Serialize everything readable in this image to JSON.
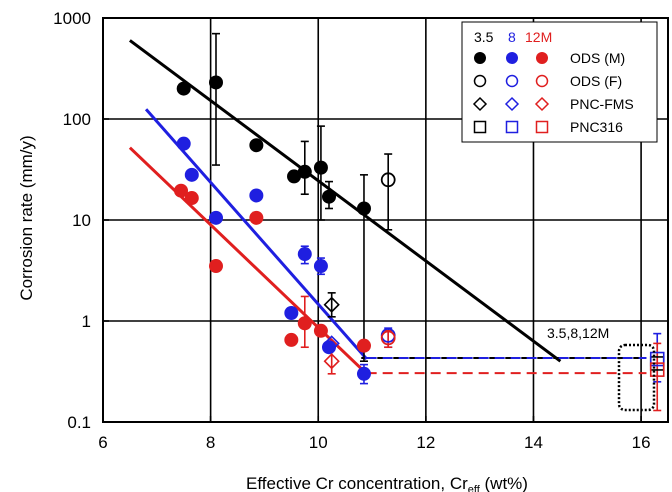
{
  "chart_data": {
    "type": "scatter",
    "title": "",
    "xlabel": "Effective Cr concentration, Cr",
    "xlabel_sub": "eff",
    "xlabel_unit": " (wt%)",
    "ylabel": "Corrosion rate (mm/y)",
    "xlim": [
      6,
      16.5
    ],
    "ylim": [
      0.1,
      1000
    ],
    "yscale": "log",
    "grid": true,
    "x_ticks": [
      6,
      8,
      10,
      12,
      14,
      16
    ],
    "x_tick_labels": [
      "6",
      "8",
      "10",
      "12",
      "14",
      "16"
    ],
    "y_ticks": [
      0.1,
      1,
      10,
      100,
      1000
    ],
    "y_tick_labels": [
      "0.1",
      "1",
      "10",
      "100",
      "1000"
    ],
    "legend": {
      "placement": "top-right",
      "header": [
        {
          "text": "3.5",
          "color": "#000000"
        },
        {
          "text": "8",
          "color": "#1f1fe0"
        },
        {
          "text": "12M",
          "color": "#e01f1f"
        }
      ],
      "rows": [
        {
          "marker": "circle-filled",
          "label": "ODS (M)"
        },
        {
          "marker": "circle-open",
          "label": "ODS (F)"
        },
        {
          "marker": "diamond-open",
          "label": "PNC-FMS"
        },
        {
          "marker": "square-open",
          "label": "PNC316"
        }
      ]
    },
    "annotation": "3.5,8,12M",
    "colors": {
      "3.5M": "#000000",
      "8M": "#1f1fe0",
      "12M": "#e01f1f"
    },
    "series": [
      {
        "name": "3.5",
        "color": "#000000",
        "points": [
          {
            "x": 7.5,
            "y": 200,
            "marker": "circle-filled"
          },
          {
            "x": 8.1,
            "y": 230,
            "marker": "circle-filled",
            "err": [
              35,
              700
            ]
          },
          {
            "x": 8.85,
            "y": 55,
            "marker": "circle-filled"
          },
          {
            "x": 9.55,
            "y": 27,
            "marker": "circle-filled"
          },
          {
            "x": 9.75,
            "y": 30,
            "marker": "circle-filled",
            "err": [
              18,
              60
            ]
          },
          {
            "x": 10.05,
            "y": 33,
            "marker": "circle-filled",
            "err": [
              10,
              85
            ]
          },
          {
            "x": 10.2,
            "y": 17,
            "marker": "circle-filled",
            "err": [
              13,
              24
            ]
          },
          {
            "x": 10.85,
            "y": 13,
            "marker": "circle-filled",
            "err": [
              0.4,
              28
            ]
          },
          {
            "x": 11.3,
            "y": 25,
            "marker": "circle-open",
            "err": [
              8,
              45
            ]
          },
          {
            "x": 10.25,
            "y": 1.45,
            "marker": "diamond-open",
            "err": [
              1.1,
              1.9
            ]
          },
          {
            "x": 16.3,
            "y": 0.38,
            "marker": "square-open"
          }
        ],
        "fit": {
          "x": [
            6.5,
            14.5
          ],
          "y": [
            600,
            0.4
          ]
        },
        "extension": {
          "x": [
            10.8,
            16.1
          ],
          "y": 0.43
        }
      },
      {
        "name": "8",
        "color": "#1f1fe0",
        "points": [
          {
            "x": 7.5,
            "y": 57,
            "marker": "circle-filled"
          },
          {
            "x": 7.65,
            "y": 28,
            "marker": "circle-filled"
          },
          {
            "x": 8.1,
            "y": 10.5,
            "marker": "circle-filled"
          },
          {
            "x": 8.85,
            "y": 17.5,
            "marker": "circle-filled"
          },
          {
            "x": 9.5,
            "y": 1.2,
            "marker": "circle-filled"
          },
          {
            "x": 9.75,
            "y": 4.6,
            "marker": "circle-filled",
            "err": [
              3.7,
              5.5
            ]
          },
          {
            "x": 10.05,
            "y": 3.5,
            "marker": "circle-filled",
            "err": [
              2.9,
              4.2
            ]
          },
          {
            "x": 10.2,
            "y": 0.55,
            "marker": "circle-filled"
          },
          {
            "x": 10.85,
            "y": 0.3,
            "marker": "circle-filled",
            "err": [
              0.24,
              0.37
            ]
          },
          {
            "x": 11.3,
            "y": 0.72,
            "marker": "circle-open",
            "err": [
              0.55,
              0.85
            ]
          },
          {
            "x": 10.25,
            "y": 0.6,
            "marker": "diamond-open"
          },
          {
            "x": 16.3,
            "y": 0.42,
            "marker": "square-open",
            "err": [
              0.25,
              0.75
            ]
          }
        ],
        "fit": {
          "x": [
            6.8,
            10.9
          ],
          "y": [
            125,
            0.42
          ]
        },
        "extension": {
          "x": [
            10.9,
            16.1
          ],
          "y": 0.43
        }
      },
      {
        "name": "12M",
        "color": "#e01f1f",
        "points": [
          {
            "x": 7.45,
            "y": 19.5,
            "marker": "circle-filled"
          },
          {
            "x": 7.65,
            "y": 16.5,
            "marker": "circle-filled"
          },
          {
            "x": 8.1,
            "y": 3.5,
            "marker": "circle-filled"
          },
          {
            "x": 8.85,
            "y": 10.5,
            "marker": "circle-filled"
          },
          {
            "x": 9.5,
            "y": 0.65,
            "marker": "circle-filled"
          },
          {
            "x": 9.75,
            "y": 0.95,
            "marker": "circle-filled",
            "err": [
              0.55,
              1.75
            ]
          },
          {
            "x": 10.05,
            "y": 0.8,
            "marker": "circle-filled"
          },
          {
            "x": 10.85,
            "y": 0.57,
            "marker": "circle-filled"
          },
          {
            "x": 11.3,
            "y": 0.68,
            "marker": "circle-open",
            "err": [
              0.55,
              0.8
            ]
          },
          {
            "x": 10.25,
            "y": 0.4,
            "marker": "diamond-open",
            "err": [
              0.3,
              0.55
            ]
          },
          {
            "x": 16.3,
            "y": 0.33,
            "marker": "square-open",
            "err": [
              0.13,
              0.6
            ]
          }
        ],
        "fit": {
          "x": [
            6.5,
            10.9
          ],
          "y": [
            52,
            0.3
          ]
        },
        "extension": {
          "x": [
            10.9,
            16.1
          ],
          "y": 0.305
        }
      }
    ]
  }
}
